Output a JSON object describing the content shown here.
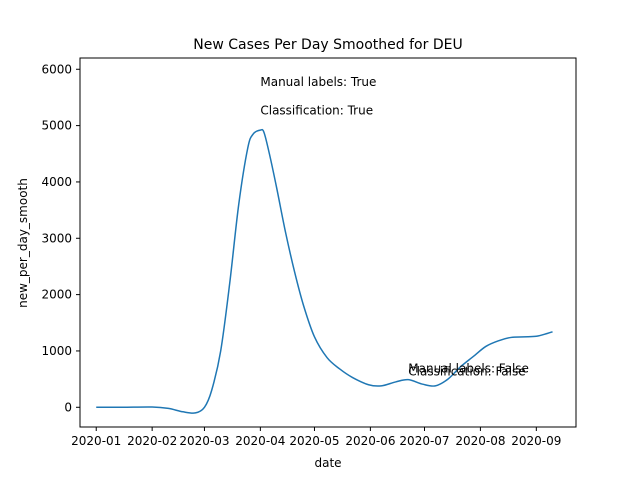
{
  "chart_data": {
    "type": "line",
    "title": "New Cases Per Day Smoothed for DEU",
    "xlabel": "date",
    "ylabel": "new_per_day_smooth",
    "xlim": [
      "2019-12-23",
      "2020-09-23"
    ],
    "ylim": [
      -350,
      6200
    ],
    "grid": false,
    "x_ticks": [
      "2020-01",
      "2020-02",
      "2020-03",
      "2020-04",
      "2020-05",
      "2020-06",
      "2020-07",
      "2020-08",
      "2020-09"
    ],
    "y_ticks": [
      0,
      1000,
      2000,
      3000,
      4000,
      5000,
      6000
    ],
    "line_color": "#1f77b4",
    "series": [
      {
        "x": [
          "2020-01-01",
          "2020-01-15",
          "2020-02-01",
          "2020-02-10",
          "2020-02-18",
          "2020-02-25",
          "2020-03-01",
          "2020-03-05",
          "2020-03-10",
          "2020-03-15",
          "2020-03-20",
          "2020-03-25",
          "2020-03-28",
          "2020-04-01",
          "2020-04-03",
          "2020-04-06",
          "2020-04-10",
          "2020-04-15",
          "2020-04-20",
          "2020-04-25",
          "2020-05-01",
          "2020-05-08",
          "2020-05-15",
          "2020-05-22",
          "2020-05-31",
          "2020-06-07",
          "2020-06-15",
          "2020-06-22",
          "2020-06-30",
          "2020-07-07",
          "2020-07-14",
          "2020-07-21",
          "2020-07-28",
          "2020-08-04",
          "2020-08-11",
          "2020-08-18",
          "2020-08-25",
          "2020-09-01",
          "2020-09-07",
          "2020-09-10"
        ],
        "y": [
          0,
          0,
          5,
          -20,
          -80,
          -100,
          0,
          300,
          1000,
          2200,
          3600,
          4600,
          4850,
          4920,
          4880,
          4500,
          3900,
          3100,
          2400,
          1800,
          1250,
          880,
          680,
          530,
          400,
          380,
          450,
          490,
          410,
          380,
          500,
          720,
          900,
          1080,
          1180,
          1240,
          1250,
          1260,
          1310,
          1340
        ]
      }
    ],
    "annotations": [
      {
        "text": "Manual labels: True",
        "x": "2020-04-01",
        "y": 5700
      },
      {
        "text": "Classification: True",
        "x": "2020-04-01",
        "y": 5200
      },
      {
        "text": "Manual labels: False",
        "x": "2020-06-22",
        "y": 620
      },
      {
        "text": "Classification: False",
        "x": "2020-06-22",
        "y": 560
      }
    ]
  }
}
